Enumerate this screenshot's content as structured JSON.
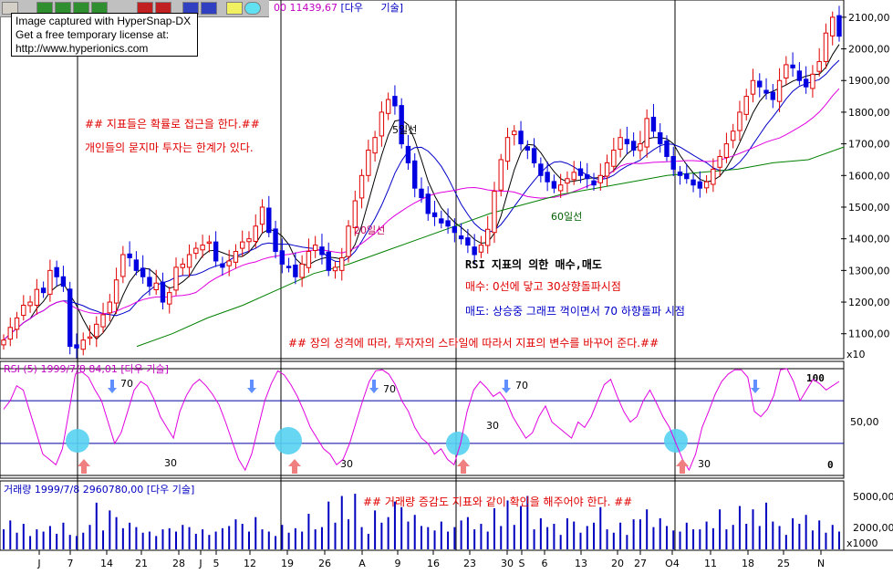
{
  "window": {
    "watermark_lines": [
      "Image captured with HyperSnap-DX",
      "Get a free temporary license at:",
      "http://www.hyperionics.com"
    ],
    "top_title_value": "00 11439,67",
    "top_title_name": "[다우",
    "top_title_type": "기술]"
  },
  "colors": {
    "up": "#e00000",
    "down": "#0000e0",
    "ma5": "#000000",
    "ma20_rsi": "#e000e0",
    "ma60": "#008000",
    "ma_blue": "#0000c8",
    "annotation_red": "#e00000",
    "annotation_blue": "#0000c8",
    "circle": "#56d2f2",
    "arrow_up": "#f08080",
    "arrow_down": "#6090ff"
  },
  "annotations": {
    "main_note1": "## 지표들은 확률로 접근을 한다.##",
    "main_note2": "개인들의 묻지마 투자는 한계가 있다.",
    "label_ma5": "5일선",
    "label_ma20": "20일선",
    "label_ma60": "60일선",
    "rsi_title": "RSI 지표의 의한 매수,매도",
    "buy_rule": "매수: 0선에 닿고 30상향돌파시점",
    "sell_rule": "매도: 상승중 그래프 꺽이면서 70 하향돌파 시점",
    "bottom_note": "## 장의 성격에 따라, 투자자의 스타일에 따라서 지표의 변수를 바꾸어 준다.##",
    "volume_note": "## 거래량 증감도 지표와 같이 확인을 해주어야 한다. ##"
  },
  "chart_data": [
    {
      "type": "candlestick",
      "panel": "price",
      "y_unit_label": "x10",
      "yticks": [
        "1100,00",
        "1200,00",
        "1300,00",
        "1400,00",
        "1500,00",
        "1600,00",
        "1700,00",
        "1800,00",
        "1900,00",
        "2000,00",
        "2100,00"
      ],
      "ylim": [
        1030,
        2140
      ],
      "series_close": [
        1080,
        1120,
        1150,
        1190,
        1200,
        1240,
        1230,
        1300,
        1280,
        1250,
        1060,
        1055,
        1080,
        1090,
        1130,
        1160,
        1200,
        1270,
        1350,
        1340,
        1300,
        1280,
        1250,
        1260,
        1200,
        1230,
        1310,
        1320,
        1350,
        1370,
        1380,
        1390,
        1330,
        1310,
        1330,
        1360,
        1390,
        1400,
        1440,
        1500,
        1420,
        1360,
        1320,
        1310,
        1280,
        1320,
        1360,
        1380,
        1350,
        1300,
        1310,
        1340,
        1440,
        1520,
        1600,
        1680,
        1720,
        1800,
        1840,
        1820,
        1700,
        1640,
        1560,
        1530,
        1480,
        1470,
        1450,
        1440,
        1420,
        1400,
        1380,
        1350,
        1380,
        1430,
        1550,
        1650,
        1720,
        1740,
        1700,
        1680,
        1640,
        1600,
        1580,
        1560,
        1570,
        1590,
        1610,
        1600,
        1590,
        1570,
        1600,
        1640,
        1680,
        1720,
        1700,
        1680,
        1700,
        1780,
        1740,
        1700,
        1660,
        1620,
        1600,
        1590,
        1570,
        1560,
        1580,
        1620,
        1660,
        1700,
        1740,
        1800,
        1850,
        1900,
        1880,
        1860,
        1840,
        1900,
        1950,
        1940,
        1900,
        1880,
        1920,
        1960,
        2050,
        2100,
        2040
      ],
      "ma5_label": "5일선",
      "ma20_label": "20일선",
      "ma60_label": "60일선",
      "ma60": [
        1060,
        1100,
        1150,
        1190,
        1240,
        1290,
        1320,
        1360,
        1400,
        1440,
        1480,
        1510,
        1540,
        1560,
        1580,
        1600,
        1610,
        1620,
        1640,
        1650,
        1690
      ]
    },
    {
      "type": "line",
      "panel": "rsi",
      "title": "RSI (5) 1999/7/8 84,01 [다우 기술]",
      "ylim": [
        0,
        100
      ],
      "levels": [
        30,
        70
      ],
      "ytick_labels": [
        "100",
        "50,00",
        "0"
      ],
      "level_labels": [
        "70",
        "30"
      ],
      "values": [
        62,
        70,
        84,
        80,
        60,
        40,
        20,
        15,
        10,
        25,
        60,
        95,
        97,
        92,
        80,
        70,
        50,
        30,
        40,
        60,
        80,
        88,
        84,
        72,
        55,
        45,
        35,
        60,
        75,
        85,
        90,
        84,
        76,
        66,
        50,
        32,
        15,
        5,
        20,
        45,
        70,
        86,
        98,
        94,
        85,
        74,
        60,
        45,
        35,
        25,
        20,
        10,
        15,
        30,
        50,
        70,
        88,
        98,
        99,
        95,
        85,
        70,
        60,
        45,
        35,
        30,
        20,
        25,
        15,
        10,
        30,
        60,
        80,
        88,
        82,
        74,
        78,
        70,
        55,
        45,
        35,
        40,
        55,
        65,
        50,
        45,
        40,
        35,
        50,
        45,
        55,
        70,
        85,
        90,
        74,
        60,
        50,
        55,
        70,
        80,
        68,
        55,
        45,
        30,
        15,
        5,
        20,
        45,
        60,
        76,
        88,
        95,
        99,
        99,
        92,
        60,
        55,
        62,
        75,
        99,
        100,
        88,
        70,
        80,
        90,
        86,
        80,
        84,
        88
      ]
    },
    {
      "type": "bar",
      "panel": "volume",
      "title": "거래량 1999/7/8 2960780,00 [다우 기술]",
      "y_unit_label": "x1000",
      "ytick_labels": [
        "5000,00",
        "2000,00"
      ],
      "values": [
        1800,
        2600,
        1500,
        2300,
        1200,
        1800,
        1600,
        2100,
        1400,
        2400,
        1300,
        1200,
        1500,
        2200,
        4200,
        1700,
        3500,
        2900,
        1900,
        2400,
        2000,
        1500,
        1600,
        1200,
        1800,
        1900,
        1600,
        2200,
        2000,
        1400,
        1800,
        1300,
        1600,
        1900,
        2100,
        2700,
        2300,
        1600,
        2900,
        1800,
        1600,
        1200,
        2200,
        1500,
        1900,
        1600,
        3200,
        1800,
        2000,
        4300,
        2400,
        4800,
        2700,
        5000,
        2000,
        1400,
        3500,
        2400,
        2900,
        4300,
        3800,
        2500,
        3100,
        2100,
        2000,
        1700,
        2500,
        1600,
        2000,
        2600,
        2900,
        1800,
        2300,
        1600,
        3700,
        2100,
        4400,
        2200,
        3900,
        4800,
        1800,
        2800,
        2000,
        2300,
        1300,
        2800,
        2500,
        1500,
        2100,
        2400,
        3800,
        1800,
        1500,
        2400,
        1300,
        2700,
        2700,
        3600,
        2000,
        2800,
        2100,
        1700,
        1600,
        2400,
        1800,
        1800,
        2500,
        1900,
        3600,
        1800,
        2200,
        3900,
        2300,
        3600,
        2100,
        4200,
        2500,
        2100,
        1300,
        2800,
        2300,
        3100,
        1700,
        2600,
        1500,
        2200,
        1600
      ]
    }
  ],
  "x_axis": {
    "tick_labels": [
      "J",
      "7",
      "14",
      "21",
      "28",
      "J",
      "5",
      "12",
      "19",
      "26",
      "A",
      "9",
      "16",
      "23",
      "30",
      "S",
      "6",
      "13",
      "20",
      "27",
      "O4",
      "11",
      "18",
      "25",
      "N"
    ]
  }
}
